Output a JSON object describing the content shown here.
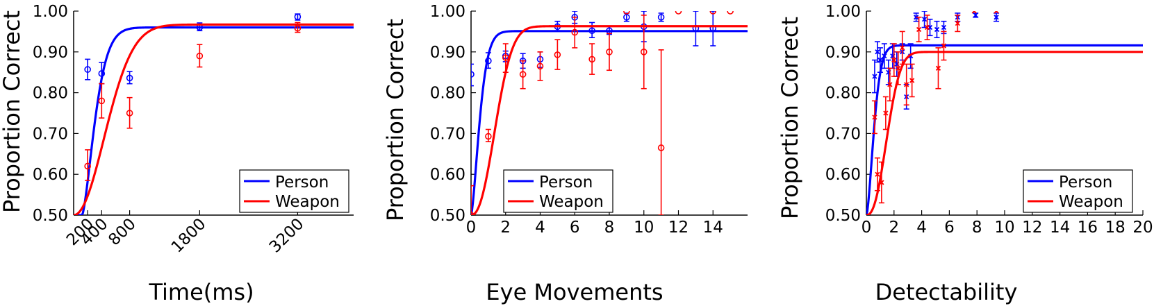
{
  "colors": {
    "person": "#0000ff",
    "weapon": "#ff0000",
    "axis": "#000000"
  },
  "chart_data": [
    {
      "type": "scatter",
      "xlabel": "Time(ms)",
      "ylabel": "Proportion Correct",
      "xlim": [
        0,
        4000
      ],
      "ylim": [
        0.5,
        1.0
      ],
      "xticks": [
        200,
        400,
        800,
        1800,
        3200
      ],
      "xtick_labels": [
        "200",
        "400",
        "800",
        "1800",
        "3200"
      ],
      "xtick_rotation": 45,
      "yticks": [
        0.5,
        0.6,
        0.7,
        0.8,
        0.9,
        1.0
      ],
      "ytick_labels": [
        "0.50",
        "0.60",
        "0.70",
        "0.80",
        "0.90",
        "1.00"
      ],
      "legend": {
        "placement": "lower-right",
        "entries": [
          "Person",
          "Weapon"
        ]
      },
      "series": [
        {
          "name": "Person",
          "color": "#0000ff",
          "marker": "o",
          "points": [
            {
              "x": 200,
              "y": 0.857,
              "lo": 0.832,
              "hi": 0.882
            },
            {
              "x": 400,
              "y": 0.847,
              "lo": 0.822,
              "hi": 0.874
            },
            {
              "x": 800,
              "y": 0.836,
              "lo": 0.822,
              "hi": 0.852
            },
            {
              "x": 1800,
              "y": 0.96,
              "lo": 0.952,
              "hi": 0.971
            },
            {
              "x": 3200,
              "y": 0.986,
              "lo": 0.978,
              "hi": 0.993
            }
          ],
          "fit": {
            "max": 0.96,
            "k": 0.00425,
            "x0": 120,
            "p": 1.5
          }
        },
        {
          "name": "Weapon",
          "color": "#ff0000",
          "marker": "o",
          "points": [
            {
              "x": 200,
              "y": 0.62,
              "lo": 0.585,
              "hi": 0.66
            },
            {
              "x": 400,
              "y": 0.78,
              "lo": 0.738,
              "hi": 0.822
            },
            {
              "x": 800,
              "y": 0.75,
              "lo": 0.713,
              "hi": 0.788
            },
            {
              "x": 1800,
              "y": 0.89,
              "lo": 0.863,
              "hi": 0.918
            },
            {
              "x": 3200,
              "y": 0.958,
              "lo": 0.948,
              "hi": 0.972
            }
          ],
          "fit": {
            "max": 0.967,
            "k": 0.00167,
            "x0": 0,
            "p": 2.05
          }
        }
      ]
    },
    {
      "type": "scatter",
      "xlabel": "Eye Movements",
      "ylabel": "Proportion Correct",
      "xlim": [
        0,
        16
      ],
      "ylim": [
        0.5,
        1.0
      ],
      "xticks": [
        0,
        2,
        4,
        6,
        8,
        10,
        12,
        14
      ],
      "xtick_labels": [
        "0",
        "2",
        "4",
        "6",
        "8",
        "10",
        "12",
        "14"
      ],
      "yticks": [
        0.5,
        0.6,
        0.7,
        0.8,
        0.9,
        1.0
      ],
      "ytick_labels": [
        "0.50",
        "0.60",
        "0.70",
        "0.80",
        "0.90",
        "1.00"
      ],
      "legend": {
        "placement": "lower-right",
        "entries": [
          "Person",
          "Weapon"
        ]
      },
      "series": [
        {
          "name": "Person",
          "color": "#0000ff",
          "marker": "o",
          "points": [
            {
              "x": 0,
              "y": 0.845,
              "lo": 0.817,
              "hi": 0.87
            },
            {
              "x": 1,
              "y": 0.878,
              "lo": 0.86,
              "hi": 0.898
            },
            {
              "x": 2,
              "y": 0.89,
              "lo": 0.876,
              "hi": 0.902
            },
            {
              "x": 3,
              "y": 0.878,
              "lo": 0.86,
              "hi": 0.896
            },
            {
              "x": 4,
              "y": 0.882,
              "lo": 0.862,
              "hi": 0.9
            },
            {
              "x": 5,
              "y": 0.962,
              "lo": 0.952,
              "hi": 0.975
            },
            {
              "x": 6,
              "y": 0.985,
              "lo": 0.97,
              "hi": 1.0
            },
            {
              "x": 7,
              "y": 0.952,
              "lo": 0.935,
              "hi": 0.972
            },
            {
              "x": 8,
              "y": 0.952,
              "lo": 0.943,
              "hi": 0.962
            },
            {
              "x": 9,
              "y": 0.985,
              "lo": 0.975,
              "hi": 0.995
            },
            {
              "x": 10,
              "y": 0.962,
              "lo": 0.925,
              "hi": 1.0
            },
            {
              "x": 11,
              "y": 0.985,
              "lo": 0.975,
              "hi": 0.995
            },
            {
              "x": 13,
              "y": 0.958,
              "lo": 0.915,
              "hi": 1.0
            },
            {
              "x": 14,
              "y": 0.958,
              "lo": 0.915,
              "hi": 1.0
            }
          ],
          "fit": {
            "max": 0.951,
            "k": 1.6,
            "x0": 0,
            "p": 1.5
          }
        },
        {
          "name": "Weapon",
          "color": "#ff0000",
          "marker": "o",
          "points": [
            {
              "x": 0,
              "y": 0.5,
              "lo": 0.5,
              "hi": 0.572
            },
            {
              "x": 1,
              "y": 0.693,
              "lo": 0.68,
              "hi": 0.71
            },
            {
              "x": 2,
              "y": 0.886,
              "lo": 0.85,
              "hi": 0.92
            },
            {
              "x": 3,
              "y": 0.845,
              "lo": 0.81,
              "hi": 0.878
            },
            {
              "x": 4,
              "y": 0.865,
              "lo": 0.83,
              "hi": 0.9
            },
            {
              "x": 5,
              "y": 0.893,
              "lo": 0.857,
              "hi": 0.93
            },
            {
              "x": 6,
              "y": 0.948,
              "lo": 0.91,
              "hi": 0.985
            },
            {
              "x": 7,
              "y": 0.882,
              "lo": 0.845,
              "hi": 0.92
            },
            {
              "x": 8,
              "y": 0.9,
              "lo": 0.855,
              "hi": 0.945
            },
            {
              "x": 9,
              "y": 1.0,
              "lo": 1.0,
              "hi": 1.0
            },
            {
              "x": 10,
              "y": 0.9,
              "lo": 0.81,
              "hi": 0.99
            },
            {
              "x": 11,
              "y": 0.665,
              "lo": 0.43,
              "hi": 0.905
            },
            {
              "x": 12,
              "y": 1.0,
              "lo": 1.0,
              "hi": 1.0
            },
            {
              "x": 14,
              "y": 1.0,
              "lo": 1.0,
              "hi": 1.0
            },
            {
              "x": 15,
              "y": 1.0,
              "lo": 1.0,
              "hi": 1.0
            }
          ],
          "fit": {
            "max": 0.963,
            "k": 0.58,
            "x0": 0,
            "p": 2.3
          }
        }
      ]
    },
    {
      "type": "scatter",
      "xlabel": "Detectability",
      "ylabel": "Proportion Correct",
      "xlim": [
        0,
        20
      ],
      "ylim": [
        0.5,
        1.0
      ],
      "xticks": [
        0,
        2,
        4,
        6,
        8,
        10,
        12,
        14,
        16,
        18,
        20
      ],
      "xtick_labels": [
        "0",
        "2",
        "4",
        "6",
        "8",
        "10",
        "12",
        "14",
        "16",
        "18",
        "20"
      ],
      "yticks": [
        0.5,
        0.6,
        0.7,
        0.8,
        0.9,
        1.0
      ],
      "ytick_labels": [
        "0.50",
        "0.60",
        "0.70",
        "0.80",
        "0.90",
        "1.00"
      ],
      "legend": {
        "placement": "lower-right",
        "entries": [
          "Person",
          "Weapon"
        ]
      },
      "series": [
        {
          "name": "Person",
          "color": "#0000ff",
          "marker": "x",
          "points": [
            {
              "x": 0.6,
              "y": 0.84,
              "lo": 0.8,
              "hi": 0.88
            },
            {
              "x": 0.8,
              "y": 0.9,
              "lo": 0.875,
              "hi": 0.925
            },
            {
              "x": 1.0,
              "y": 0.88,
              "lo": 0.85,
              "hi": 0.91
            },
            {
              "x": 1.3,
              "y": 0.89,
              "lo": 0.86,
              "hi": 0.92
            },
            {
              "x": 1.6,
              "y": 0.85,
              "lo": 0.82,
              "hi": 0.88
            },
            {
              "x": 1.9,
              "y": 0.89,
              "lo": 0.86,
              "hi": 0.92
            },
            {
              "x": 2.2,
              "y": 0.87,
              "lo": 0.84,
              "hi": 0.9
            },
            {
              "x": 2.6,
              "y": 0.9,
              "lo": 0.88,
              "hi": 0.92
            },
            {
              "x": 2.9,
              "y": 0.79,
              "lo": 0.76,
              "hi": 0.82
            },
            {
              "x": 3.2,
              "y": 0.89,
              "lo": 0.86,
              "hi": 0.92
            },
            {
              "x": 3.6,
              "y": 0.985,
              "lo": 0.975,
              "hi": 0.995
            },
            {
              "x": 4.2,
              "y": 0.98,
              "lo": 0.96,
              "hi": 1.0
            },
            {
              "x": 4.6,
              "y": 0.96,
              "lo": 0.94,
              "hi": 0.98
            },
            {
              "x": 5.1,
              "y": 0.955,
              "lo": 0.935,
              "hi": 0.975
            },
            {
              "x": 5.6,
              "y": 0.96,
              "lo": 0.945,
              "hi": 0.975
            },
            {
              "x": 6.6,
              "y": 0.985,
              "lo": 0.975,
              "hi": 0.995
            },
            {
              "x": 7.9,
              "y": 0.99,
              "lo": 0.985,
              "hi": 0.995
            },
            {
              "x": 9.4,
              "y": 0.985,
              "lo": 0.975,
              "hi": 0.995
            }
          ],
          "fit": {
            "max": 0.916,
            "k": 1.45,
            "x0": 0,
            "p": 1.6
          }
        },
        {
          "name": "Weapon",
          "color": "#ff0000",
          "marker": "x",
          "points": [
            {
              "x": 0.6,
              "y": 0.74,
              "lo": 0.7,
              "hi": 0.78
            },
            {
              "x": 0.8,
              "y": 0.6,
              "lo": 0.56,
              "hi": 0.64
            },
            {
              "x": 1.1,
              "y": 0.58,
              "lo": 0.53,
              "hi": 0.63
            },
            {
              "x": 1.4,
              "y": 0.75,
              "lo": 0.71,
              "hi": 0.79
            },
            {
              "x": 1.7,
              "y": 0.82,
              "lo": 0.78,
              "hi": 0.86
            },
            {
              "x": 2.0,
              "y": 0.88,
              "lo": 0.84,
              "hi": 0.92
            },
            {
              "x": 2.3,
              "y": 0.86,
              "lo": 0.82,
              "hi": 0.9
            },
            {
              "x": 2.6,
              "y": 0.91,
              "lo": 0.87,
              "hi": 0.95
            },
            {
              "x": 2.9,
              "y": 0.82,
              "lo": 0.77,
              "hi": 0.87
            },
            {
              "x": 3.3,
              "y": 0.83,
              "lo": 0.79,
              "hi": 0.87
            },
            {
              "x": 3.8,
              "y": 0.955,
              "lo": 0.925,
              "hi": 0.985
            },
            {
              "x": 4.4,
              "y": 0.96,
              "lo": 0.93,
              "hi": 0.99
            },
            {
              "x": 5.2,
              "y": 0.86,
              "lo": 0.81,
              "hi": 0.91
            },
            {
              "x": 5.6,
              "y": 0.915,
              "lo": 0.88,
              "hi": 0.95
            },
            {
              "x": 6.6,
              "y": 0.97,
              "lo": 0.95,
              "hi": 0.99
            },
            {
              "x": 7.8,
              "y": 1.0,
              "lo": 1.0,
              "hi": 1.0
            },
            {
              "x": 9.4,
              "y": 1.0,
              "lo": 1.0,
              "hi": 1.0
            }
          ],
          "fit": {
            "max": 0.9,
            "k": 0.56,
            "x0": 0,
            "p": 2.4
          }
        }
      ]
    }
  ]
}
